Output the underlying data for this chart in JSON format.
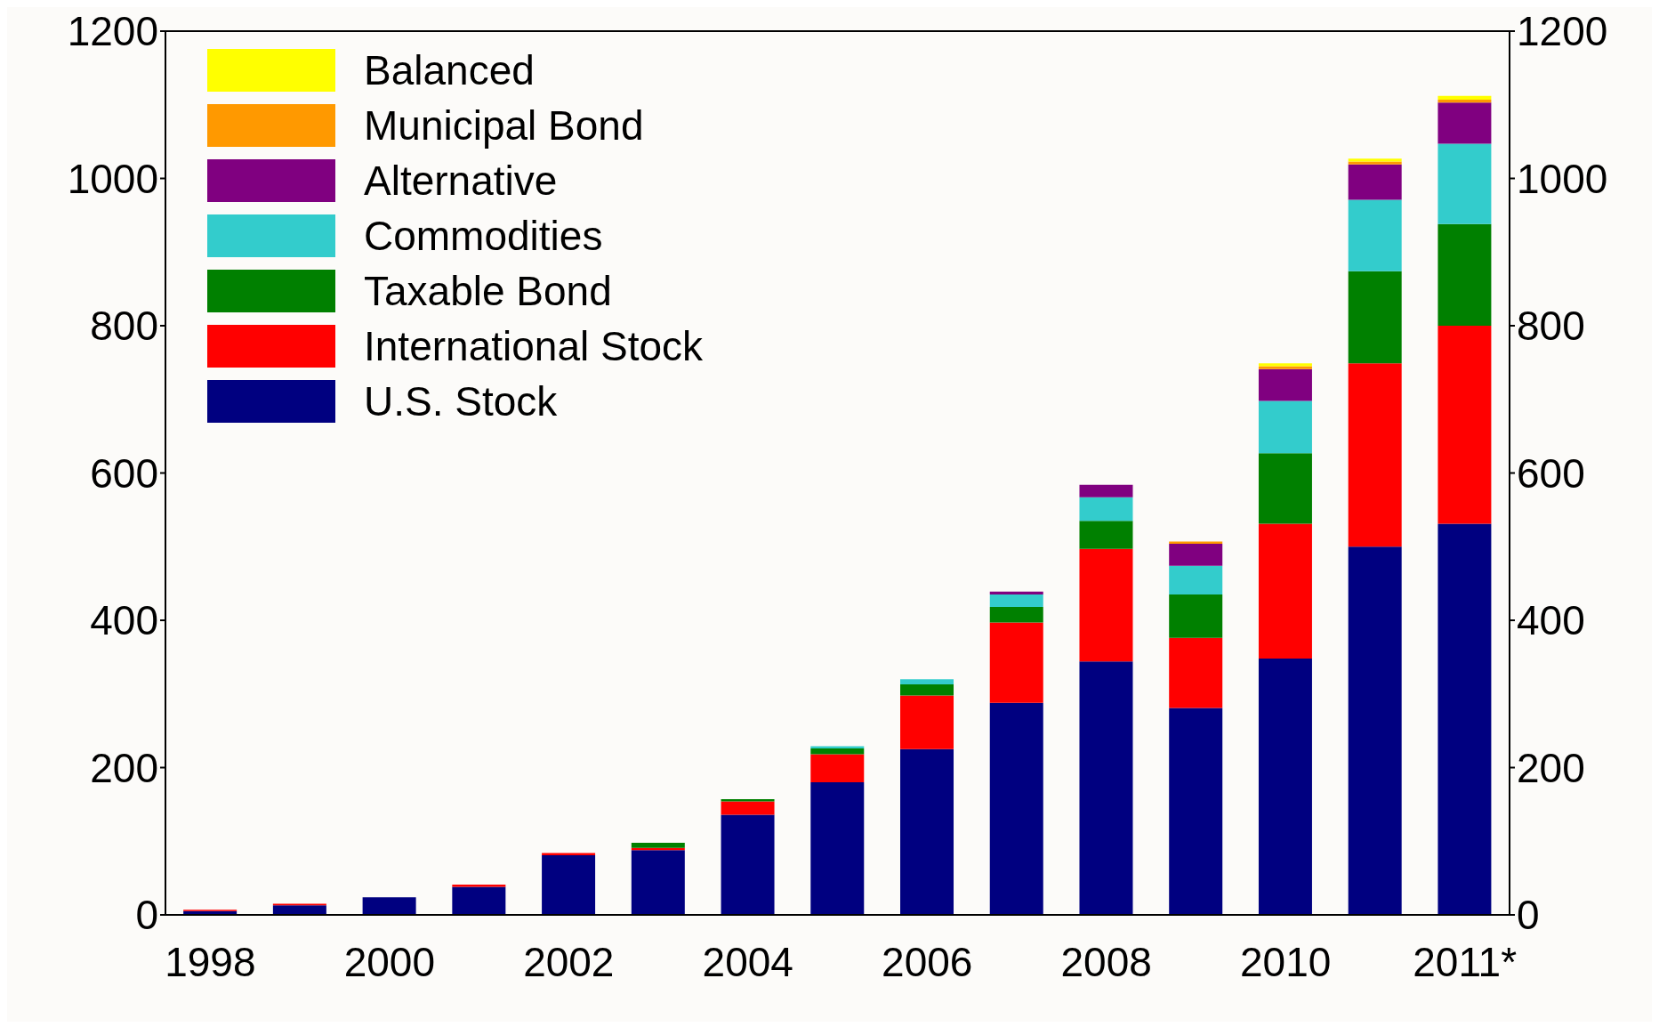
{
  "chart_data": {
    "type": "bar",
    "stacked": true,
    "categories": [
      "1998",
      null,
      "2000",
      null,
      "2002",
      null,
      "2004",
      null,
      "2006",
      null,
      "2008",
      null,
      "2010",
      null,
      "2011*"
    ],
    "series": [
      {
        "name": "U.S. Stock",
        "color": "#000080",
        "values": [
          5,
          13,
          24,
          38,
          81,
          88,
          136,
          180,
          225,
          288,
          344,
          281,
          348,
          500,
          531
        ]
      },
      {
        "name": "International Stock",
        "color": "#ff0000",
        "values": [
          2,
          2,
          0,
          3,
          3,
          3,
          18,
          38,
          73,
          109,
          153,
          95,
          183,
          249,
          269
        ]
      },
      {
        "name": "Taxable Bond",
        "color": "#008000",
        "values": [
          0,
          0,
          0,
          0,
          0,
          7,
          3,
          8,
          15,
          21,
          38,
          59,
          96,
          125,
          138
        ]
      },
      {
        "name": "Commodities",
        "color": "#33cccc",
        "values": [
          0,
          0,
          0,
          0,
          0,
          0,
          0,
          3,
          7,
          17,
          32,
          39,
          71,
          97,
          109
        ]
      },
      {
        "name": "Alternative",
        "color": "#800080",
        "values": [
          0,
          0,
          0,
          0,
          0,
          0,
          0,
          0,
          0,
          4,
          17,
          30,
          43,
          48,
          56
        ]
      },
      {
        "name": "Municipal Bond",
        "color": "#ff9900",
        "values": [
          0,
          0,
          0,
          0,
          0,
          0,
          0,
          0,
          0,
          0,
          0,
          3,
          4,
          4,
          4
        ]
      },
      {
        "name": "Balanced",
        "color": "#ffff00",
        "values": [
          0,
          0,
          0,
          0,
          0,
          0,
          0,
          0,
          0,
          0,
          0,
          0,
          4,
          4,
          5
        ]
      }
    ],
    "ylim": [
      0,
      1200
    ],
    "yticks": [
      0,
      200,
      400,
      600,
      800,
      1000,
      1200
    ],
    "y2lim": [
      0,
      1200
    ],
    "y2ticks": [
      0,
      200,
      400,
      600,
      800,
      1000,
      1200
    ],
    "grid": false,
    "legend": "top left"
  }
}
